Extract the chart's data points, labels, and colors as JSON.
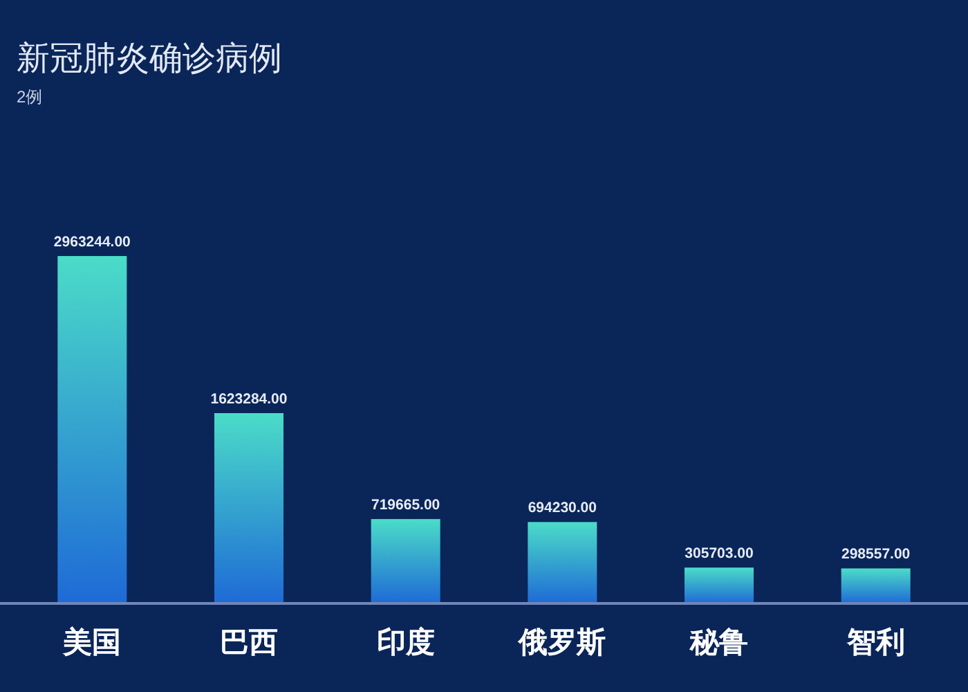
{
  "chart_data": {
    "type": "bar",
    "title": "新冠肺炎确诊病例",
    "subtitle": "2例",
    "categories": [
      "美国",
      "巴西",
      "印度",
      "俄罗斯",
      "秘鲁",
      "智利"
    ],
    "values": [
      2963244,
      1623284,
      719665,
      694230,
      305703,
      298557
    ],
    "value_labels": [
      "2963244.00",
      "1623284.00",
      "719665.00",
      "694230.00",
      "305703.00",
      "298557.00"
    ],
    "color": "#4bdcc8"
  }
}
